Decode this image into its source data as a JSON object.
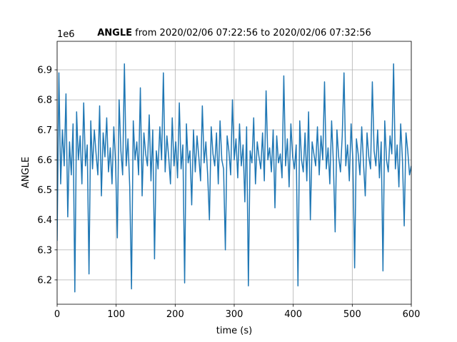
{
  "chart_data": {
    "type": "line",
    "title_variable": "ANGLE",
    "title_range": "from 2020/02/06 07:22:56 to 2020/02/06 07:32:56",
    "offset_text": "1e6",
    "xlabel": "time (s)",
    "ylabel": "ANGLE",
    "color": "#1f77b4",
    "grid": true,
    "xlim": [
      0,
      600
    ],
    "xticks": [
      0,
      100,
      200,
      300,
      400,
      500,
      600
    ],
    "ylim": [
      6.119,
      6.995
    ],
    "yticks": [
      6.2,
      6.3,
      6.4,
      6.5,
      6.6,
      6.7,
      6.8,
      6.9
    ],
    "x": [
      0,
      3,
      6,
      9,
      12,
      15,
      18,
      21,
      24,
      27,
      30,
      33,
      36,
      39,
      42,
      45,
      48,
      51,
      54,
      57,
      60,
      63,
      66,
      69,
      72,
      75,
      78,
      81,
      84,
      87,
      90,
      93,
      96,
      99,
      102,
      105,
      108,
      111,
      114,
      117,
      120,
      123,
      126,
      129,
      132,
      135,
      138,
      141,
      144,
      147,
      150,
      153,
      156,
      159,
      162,
      165,
      168,
      171,
      174,
      177,
      180,
      183,
      186,
      189,
      192,
      195,
      198,
      201,
      204,
      207,
      210,
      213,
      216,
      219,
      222,
      225,
      228,
      231,
      234,
      237,
      240,
      243,
      246,
      249,
      252,
      255,
      258,
      261,
      264,
      267,
      270,
      273,
      276,
      279,
      282,
      285,
      288,
      291,
      294,
      297,
      300,
      303,
      306,
      309,
      312,
      315,
      318,
      321,
      324,
      327,
      330,
      333,
      336,
      339,
      342,
      345,
      348,
      351,
      354,
      357,
      360,
      363,
      366,
      369,
      372,
      375,
      378,
      381,
      384,
      387,
      390,
      393,
      396,
      399,
      402,
      405,
      408,
      411,
      414,
      417,
      420,
      423,
      426,
      429,
      432,
      435,
      438,
      441,
      444,
      447,
      450,
      453,
      456,
      459,
      462,
      465,
      468,
      471,
      474,
      477,
      480,
      483,
      486,
      489,
      492,
      495,
      498,
      501,
      504,
      507,
      510,
      513,
      516,
      519,
      522,
      525,
      528,
      531,
      534,
      537,
      540,
      543,
      546,
      549,
      552,
      555,
      558,
      561,
      564,
      567,
      570,
      573,
      576,
      579,
      582,
      585,
      588,
      591,
      594,
      597,
      600
    ],
    "values": [
      6.33,
      6.89,
      6.52,
      6.7,
      6.58,
      6.82,
      6.41,
      6.66,
      6.55,
      6.72,
      6.16,
      6.76,
      6.6,
      6.68,
      6.52,
      6.79,
      6.58,
      6.65,
      6.22,
      6.73,
      6.57,
      6.7,
      6.62,
      6.55,
      6.78,
      6.48,
      6.69,
      6.61,
      6.74,
      6.56,
      6.64,
      6.52,
      6.71,
      6.59,
      6.34,
      6.8,
      6.63,
      6.55,
      6.92,
      6.58,
      6.67,
      6.51,
      6.17,
      6.73,
      6.6,
      6.66,
      6.55,
      6.84,
      6.48,
      6.69,
      6.62,
      6.58,
      6.75,
      6.53,
      6.7,
      6.27,
      6.63,
      6.57,
      6.71,
      6.6,
      6.89,
      6.56,
      6.68,
      6.61,
      6.52,
      6.74,
      6.58,
      6.66,
      6.54,
      6.79,
      6.57,
      6.65,
      6.19,
      6.72,
      6.59,
      6.63,
      6.45,
      6.7,
      6.56,
      6.68,
      6.61,
      6.53,
      6.78,
      6.59,
      6.66,
      6.55,
      6.4,
      6.71,
      6.62,
      6.58,
      6.69,
      6.52,
      6.73,
      6.6,
      6.57,
      6.3,
      6.68,
      6.63,
      6.55,
      6.8,
      6.6,
      6.67,
      6.54,
      6.72,
      6.58,
      6.65,
      6.46,
      6.71,
      6.18,
      6.63,
      6.59,
      6.74,
      6.52,
      6.66,
      6.61,
      6.57,
      6.69,
      6.53,
      6.83,
      6.6,
      6.64,
      6.56,
      6.7,
      6.44,
      6.68,
      6.59,
      6.62,
      6.54,
      6.88,
      6.58,
      6.67,
      6.51,
      6.72,
      6.61,
      6.57,
      6.65,
      6.18,
      6.73,
      6.6,
      6.56,
      6.69,
      6.53,
      6.76,
      6.4,
      6.66,
      6.62,
      6.58,
      6.71,
      6.55,
      6.68,
      6.6,
      6.86,
      6.57,
      6.64,
      6.52,
      6.73,
      6.59,
      6.36,
      6.7,
      6.61,
      6.56,
      6.68,
      6.89,
      6.58,
      6.65,
      6.53,
      6.72,
      6.6,
      6.24,
      6.67,
      6.62,
      6.55,
      6.71,
      6.59,
      6.48,
      6.69,
      6.61,
      6.57,
      6.86,
      6.63,
      6.58,
      6.7,
      6.54,
      6.66,
      6.23,
      6.73,
      6.6,
      6.56,
      6.68,
      6.62,
      6.92,
      6.57,
      6.65,
      6.51,
      6.72,
      6.6,
      6.38,
      6.69,
      6.63,
      6.55,
      6.58
    ]
  }
}
